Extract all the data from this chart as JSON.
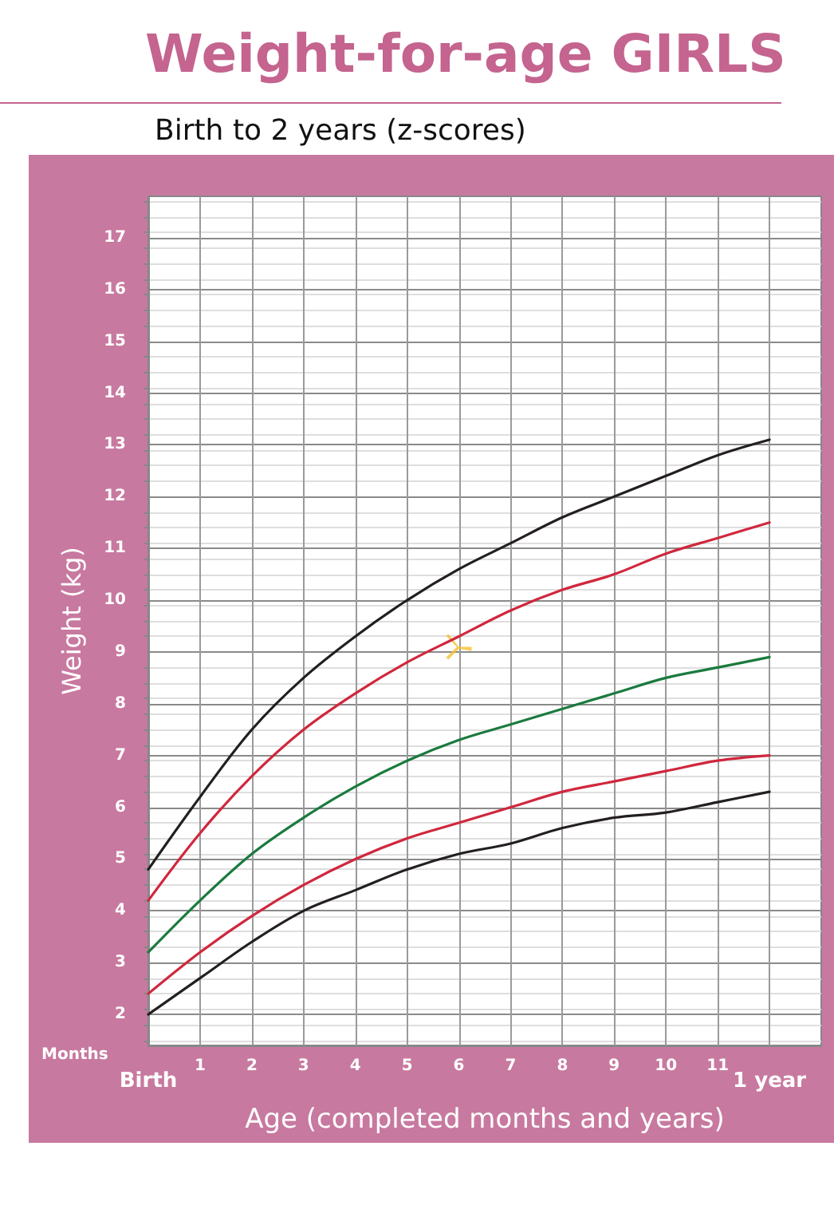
{
  "chart_data": {
    "type": "line",
    "title": "Weight-for-age GIRLS",
    "subtitle": "Birth to 2 years (z-scores)",
    "xlabel": "Age (completed months and years)",
    "ylabel": "Weight (kg)",
    "annotations": [
      "Months",
      "Birth",
      "1 year"
    ],
    "x": [
      0,
      1,
      2,
      3,
      4,
      5,
      6,
      7,
      8,
      9,
      10,
      11,
      12
    ],
    "series": [
      {
        "color": "#231f20",
        "values": [
          4.8,
          6.2,
          7.5,
          8.5,
          9.3,
          10.0,
          10.6,
          11.1,
          11.6,
          12.0,
          12.4,
          12.8,
          13.1
        ]
      },
      {
        "color": "#d0273d",
        "values": [
          4.2,
          5.5,
          6.6,
          7.5,
          8.2,
          8.8,
          9.3,
          9.8,
          10.2,
          10.5,
          10.9,
          11.2,
          11.5
        ]
      },
      {
        "color": "#1b7a3e",
        "values": [
          3.2,
          4.2,
          5.1,
          5.8,
          6.4,
          6.9,
          7.3,
          7.6,
          7.9,
          8.2,
          8.5,
          8.7,
          8.9
        ]
      },
      {
        "color": "#d0273d",
        "values": [
          2.4,
          3.2,
          3.9,
          4.5,
          5.0,
          5.4,
          5.7,
          6.0,
          6.3,
          6.5,
          6.7,
          6.9,
          7.0
        ]
      },
      {
        "color": "#231f20",
        "values": [
          2.0,
          2.7,
          3.4,
          4.0,
          4.4,
          4.8,
          5.1,
          5.3,
          5.6,
          5.8,
          5.9,
          6.1,
          6.3
        ]
      },
      {
        "type": "scatter",
        "marker": "cross",
        "color": "#f5c030",
        "x": [
          6
        ],
        "values": [
          9.1
        ]
      }
    ],
    "xlim": [
      0,
      13
    ],
    "xticks": [
      {
        "value": 0,
        "label": null
      },
      1,
      2,
      3,
      4,
      5,
      6,
      7,
      8,
      9,
      10,
      11,
      {
        "value": 12,
        "label": null
      }
    ],
    "ylim": [
      1.4,
      17.8
    ],
    "yticks": [
      2,
      3,
      4,
      5,
      6,
      7,
      8,
      9,
      10,
      11,
      12,
      13,
      14,
      15,
      16,
      17
    ],
    "grid": true
  }
}
